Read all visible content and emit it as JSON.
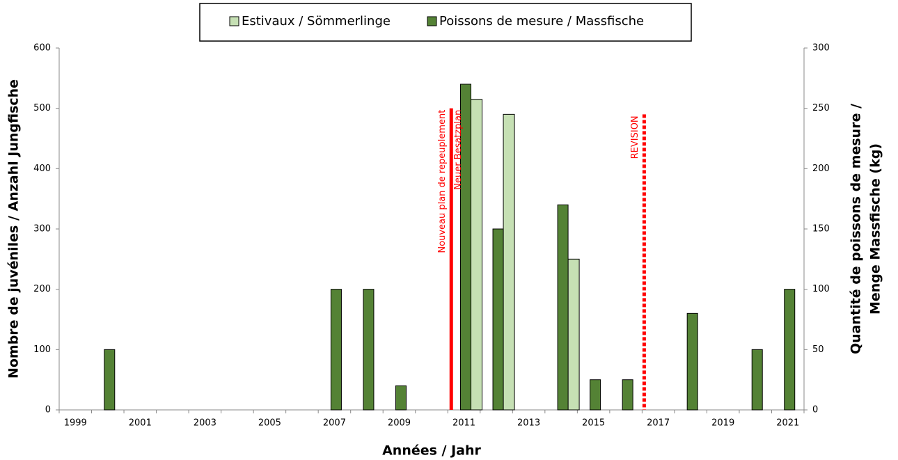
{
  "chart_data": {
    "type": "bar",
    "x_label": "Années / Jahr",
    "y_label": "Nombre de juvéniles / Anzahl Jungfische",
    "y2_label": [
      "Quantité de poissons de mesure /",
      "Menge Massfische (kg)"
    ],
    "categories": [
      "1999",
      null,
      "2001",
      null,
      "2003",
      null,
      "2005",
      null,
      "2007",
      null,
      "2009",
      null,
      "2011",
      null,
      "2013",
      null,
      "2015",
      null,
      "2017",
      null,
      "2019",
      null,
      "2021"
    ],
    "series": [
      {
        "name": "Estivaux / Sömmerlinge",
        "color": "#c6e0b4",
        "axis": "y",
        "values": [
          0,
          0,
          0,
          0,
          0,
          0,
          0,
          0,
          0,
          0,
          0,
          0,
          515,
          490,
          0,
          250,
          0,
          0,
          0,
          0,
          0,
          0,
          0
        ]
      },
      {
        "name": "Poissons de mesure / Massfische",
        "color": "#548235",
        "axis": "y2",
        "values": [
          0,
          50,
          0,
          0,
          0,
          0,
          0,
          0,
          100,
          100,
          20,
          0,
          270,
          150,
          0,
          170,
          25,
          25,
          0,
          80,
          0,
          50,
          100
        ]
      }
    ],
    "ylim": [
      0,
      600
    ],
    "yticks": [
      0,
      100,
      200,
      300,
      400,
      500,
      600
    ],
    "y2lim": [
      0,
      300
    ],
    "y2ticks": [
      0,
      50,
      100,
      150,
      200,
      250,
      300
    ],
    "legend": "top",
    "annotations": [
      {
        "lines": [
          "Nouveau plan de repeuplement",
          "Neuer Besatzplan"
        ],
        "category": "2011",
        "y": 500,
        "color": "#ff0000",
        "style": "solid"
      },
      {
        "lines": [
          "REVISION"
        ],
        "category": "2017",
        "y": 490,
        "color": "#ff0000",
        "style": "dashed"
      }
    ]
  }
}
